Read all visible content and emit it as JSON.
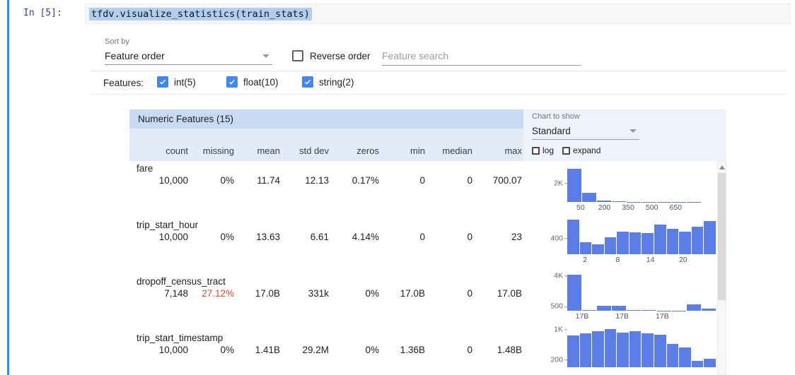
{
  "cell": {
    "prompt": "In [5]:",
    "code": "tfdv.visualize_statistics(train_stats)"
  },
  "controls": {
    "sort_by_label": "Sort by",
    "sort_by_value": "Feature order",
    "reverse_order_label": "Reverse order",
    "search_placeholder": "Feature search",
    "features_label": "Features:",
    "feature_filters": [
      {
        "label": "int(5)",
        "checked": true
      },
      {
        "label": "float(10)",
        "checked": true
      },
      {
        "label": "string(2)",
        "checked": true
      }
    ]
  },
  "chart_controls": {
    "chart_to_show_label": "Chart to show",
    "chart_type_value": "Standard",
    "log_label": "log",
    "expand_label": "expand"
  },
  "table": {
    "title": "Numeric Features (15)",
    "columns": [
      "count",
      "missing",
      "mean",
      "std dev",
      "zeros",
      "min",
      "median",
      "max"
    ],
    "rows": [
      {
        "name": "fare",
        "values": [
          "10,000",
          "0%",
          "11.74",
          "12.13",
          "0.17%",
          "0",
          "0",
          "700.07"
        ]
      },
      {
        "name": "trip_start_hour",
        "values": [
          "10,000",
          "0%",
          "13.63",
          "6.61",
          "4.14%",
          "0",
          "0",
          "23"
        ]
      },
      {
        "name": "dropoff_census_tract",
        "values": [
          "7,148",
          "27.12%",
          "17.0B",
          "331k",
          "0%",
          "17.0B",
          "0",
          "17.0B"
        ]
      },
      {
        "name": "trip_start_timestamp",
        "values": [
          "10,000",
          "0%",
          "1.41B",
          "29.2M",
          "0%",
          "1.36B",
          "0",
          "1.48B"
        ]
      }
    ]
  },
  "chart_data": [
    {
      "type": "bar",
      "feature": "fare",
      "ylim": [
        0,
        4000
      ],
      "values": [
        3500,
        950,
        120,
        50,
        30,
        20,
        14,
        10,
        7,
        5
      ],
      "y_ticks": [
        {
          "label": "2K",
          "value": 2000
        }
      ],
      "x_ticks": [
        {
          "label": "50",
          "pos": 0.09
        },
        {
          "label": "200",
          "pos": 0.25
        },
        {
          "label": "350",
          "pos": 0.41
        },
        {
          "label": "500",
          "pos": 0.57
        },
        {
          "label": "650",
          "pos": 0.73
        }
      ]
    },
    {
      "type": "bar",
      "feature": "trip_start_hour",
      "ylim": [
        0,
        950
      ],
      "values": [
        870,
        300,
        250,
        420,
        560,
        540,
        520,
        740,
        640,
        560,
        680,
        830
      ],
      "y_ticks": [
        {
          "label": "400",
          "value": 400
        }
      ],
      "x_ticks": [
        {
          "label": "2",
          "pos": 0.12
        },
        {
          "label": "8",
          "pos": 0.34
        },
        {
          "label": "14",
          "pos": 0.56
        },
        {
          "label": "20",
          "pos": 0.78
        }
      ]
    },
    {
      "type": "bar",
      "feature": "dropoff_census_tract",
      "ylim": [
        0,
        4350
      ],
      "values": [
        4100,
        120,
        560,
        590,
        80,
        50,
        40,
        30,
        700,
        280
      ],
      "y_ticks": [
        {
          "label": "4K",
          "value": 4000
        },
        {
          "label": "500",
          "value": 500
        }
      ],
      "x_ticks": [
        {
          "label": "17B",
          "pos": 0.1
        },
        {
          "label": "17B",
          "pos": 0.37
        },
        {
          "label": "17B",
          "pos": 0.64
        }
      ]
    },
    {
      "type": "bar",
      "feature": "trip_start_timestamp",
      "ylim": [
        0,
        1000
      ],
      "values": [
        830,
        890,
        950,
        1000,
        900,
        950,
        890,
        860,
        620,
        520,
        160,
        230
      ],
      "y_ticks": [
        {
          "label": "1K",
          "value": 1000
        },
        {
          "label": "200",
          "value": 200
        }
      ],
      "x_ticks": []
    }
  ],
  "colors": {
    "accent_blue": "#4285f4",
    "histogram_bar": "#5a7de8",
    "missing_alert": "#e2492f",
    "table_title_bg": "#c9daf5",
    "table_header_bg": "#e2ebfa",
    "chart_panel_bg": "#eef2fb",
    "code_selection": "#b1cdf0",
    "prompt_blue": "#303f9f",
    "cell_indicator": "#2196f3"
  }
}
